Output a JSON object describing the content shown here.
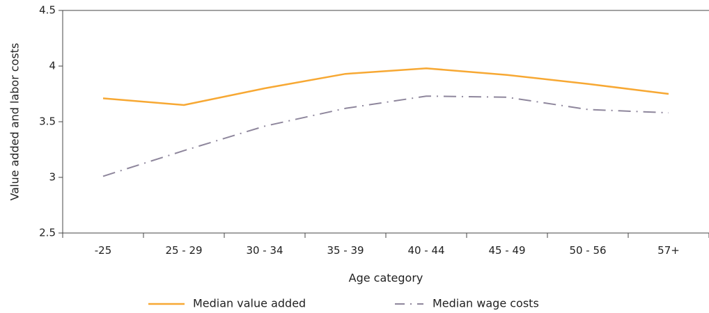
{
  "chart_data": {
    "type": "line",
    "categories": [
      "-25",
      "25 - 29",
      "30 - 34",
      "35 - 39",
      "40 - 44",
      "45 - 49",
      "50 - 56",
      "57+"
    ],
    "series": [
      {
        "name": "Median value added",
        "values": [
          3.71,
          3.65,
          3.8,
          3.93,
          3.98,
          3.92,
          3.84,
          3.75
        ],
        "color": "#F7A833",
        "style": "solid"
      },
      {
        "name": "Median wage costs",
        "values": [
          3.01,
          3.24,
          3.46,
          3.62,
          3.73,
          3.72,
          3.61,
          3.58
        ],
        "color": "#8E869C",
        "style": "dash-dot"
      }
    ],
    "xlabel": "Age category",
    "ylabel": "Value added and labor costs",
    "ylim": [
      2.5,
      4.5
    ],
    "yticks": [
      "2.5",
      "3",
      "3.5",
      "4",
      "4.5"
    ],
    "grid": false,
    "legend_position": "bottom"
  }
}
